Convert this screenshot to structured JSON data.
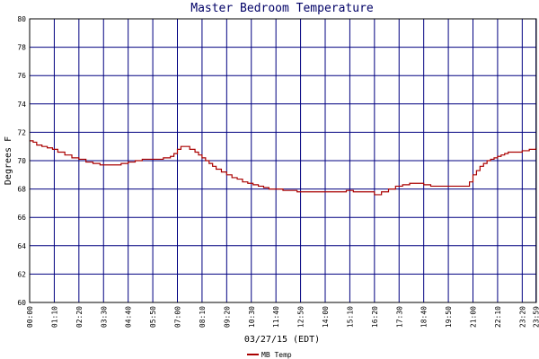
{
  "chart_data": {
    "type": "line",
    "title": "Master Bedroom Temperature",
    "xlabel": "03/27/15 (EDT)",
    "ylabel": "Degrees F",
    "ylim": [
      60,
      80
    ],
    "yticks": [
      60,
      62,
      64,
      66,
      68,
      70,
      72,
      74,
      76,
      78,
      80
    ],
    "xlim": [
      0,
      1440
    ],
    "xticks": [
      {
        "label": "00:00",
        "minute": 0
      },
      {
        "label": "01:10",
        "minute": 70
      },
      {
        "label": "02:20",
        "minute": 140
      },
      {
        "label": "03:30",
        "minute": 210
      },
      {
        "label": "04:40",
        "minute": 280
      },
      {
        "label": "05:50",
        "minute": 350
      },
      {
        "label": "07:00",
        "minute": 420
      },
      {
        "label": "08:10",
        "minute": 490
      },
      {
        "label": "09:20",
        "minute": 560
      },
      {
        "label": "10:30",
        "minute": 630
      },
      {
        "label": "11:40",
        "minute": 700
      },
      {
        "label": "12:50",
        "minute": 770
      },
      {
        "label": "14:00",
        "minute": 840
      },
      {
        "label": "15:10",
        "minute": 910
      },
      {
        "label": "16:20",
        "minute": 980
      },
      {
        "label": "17:30",
        "minute": 1050
      },
      {
        "label": "18:40",
        "minute": 1120
      },
      {
        "label": "19:50",
        "minute": 1190
      },
      {
        "label": "21:00",
        "minute": 1260
      },
      {
        "label": "22:10",
        "minute": 1330
      },
      {
        "label": "23:20",
        "minute": 1400
      },
      {
        "label": "23:59",
        "minute": 1439
      }
    ],
    "grid": true,
    "legend": "bottom-left",
    "series": [
      {
        "name": "MB Temp",
        "color": "#aa0000",
        "x": [
          0,
          10,
          20,
          35,
          50,
          65,
          80,
          100,
          120,
          140,
          160,
          180,
          200,
          220,
          240,
          260,
          280,
          300,
          320,
          340,
          360,
          380,
          400,
          410,
          420,
          430,
          440,
          455,
          470,
          480,
          490,
          500,
          510,
          520,
          530,
          545,
          560,
          575,
          590,
          605,
          620,
          635,
          650,
          665,
          680,
          700,
          720,
          740,
          760,
          780,
          800,
          820,
          840,
          860,
          880,
          900,
          920,
          940,
          960,
          980,
          1000,
          1020,
          1040,
          1060,
          1080,
          1100,
          1120,
          1140,
          1160,
          1180,
          1200,
          1220,
          1240,
          1250,
          1260,
          1270,
          1280,
          1290,
          1300,
          1310,
          1320,
          1330,
          1340,
          1350,
          1360,
          1380,
          1400,
          1420,
          1439
        ],
        "values": [
          71.4,
          71.3,
          71.1,
          71.0,
          70.9,
          70.8,
          70.6,
          70.4,
          70.2,
          70.1,
          69.9,
          69.8,
          69.7,
          69.7,
          69.7,
          69.8,
          69.9,
          70.0,
          70.1,
          70.1,
          70.1,
          70.2,
          70.3,
          70.5,
          70.8,
          71.0,
          71.0,
          70.8,
          70.6,
          70.4,
          70.2,
          70.0,
          69.8,
          69.6,
          69.4,
          69.2,
          69.0,
          68.8,
          68.7,
          68.5,
          68.4,
          68.3,
          68.2,
          68.1,
          68.0,
          68.0,
          67.9,
          67.9,
          67.8,
          67.8,
          67.8,
          67.8,
          67.8,
          67.8,
          67.8,
          67.9,
          67.8,
          67.8,
          67.8,
          67.6,
          67.8,
          68.0,
          68.2,
          68.3,
          68.4,
          68.4,
          68.3,
          68.2,
          68.2,
          68.2,
          68.2,
          68.2,
          68.2,
          68.5,
          69.0,
          69.3,
          69.6,
          69.8,
          70.0,
          70.1,
          70.2,
          70.3,
          70.4,
          70.5,
          70.6,
          70.6,
          70.7,
          70.8,
          70.9
        ]
      }
    ]
  }
}
